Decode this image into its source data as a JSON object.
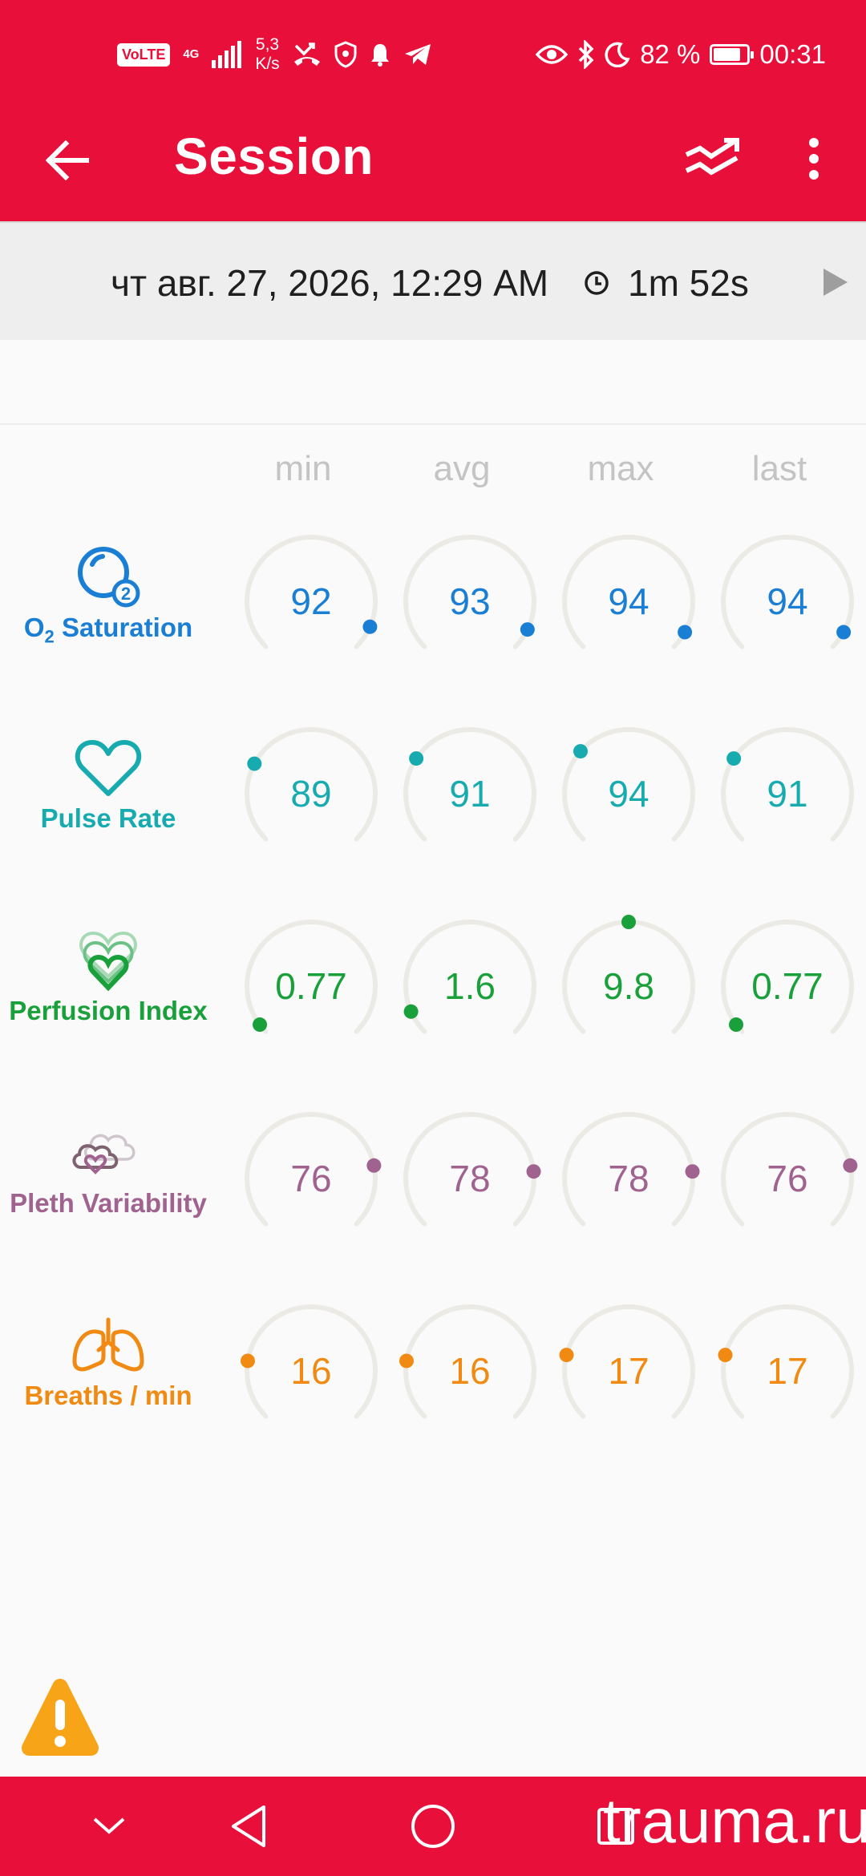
{
  "status_bar": {
    "volte": "VoLTE",
    "network": "4G",
    "speed_value": "5,3",
    "speed_unit": "K/s",
    "battery_percent": "82 %",
    "battery_level": 0.82,
    "time": "00:31"
  },
  "app_bar": {
    "title": "Session",
    "icons": [
      "back-arrow-icon",
      "trend-chart-icon",
      "more-vert-icon"
    ]
  },
  "session": {
    "date": "чт авг. 27, 2026, 12:29 AM",
    "duration": "1m 52s"
  },
  "columns": [
    "min",
    "avg",
    "max",
    "last"
  ],
  "metrics": [
    {
      "key": "o2",
      "name_prefix": "O",
      "name_sub": "2",
      "name_suffix": " Saturation",
      "icon": "o2-bubble-icon",
      "color": "#1A7FD4",
      "values": [
        {
          "text": "92",
          "level": 0.92
        },
        {
          "text": "93",
          "level": 0.93
        },
        {
          "text": "94",
          "level": 0.94
        },
        {
          "text": "94",
          "level": 0.94
        }
      ]
    },
    {
      "key": "pulse",
      "name": "Pulse Rate",
      "icon": "heart-outline-icon",
      "color": "#17ABB0",
      "values": [
        {
          "text": "89",
          "level": 0.27
        },
        {
          "text": "91",
          "level": 0.29
        },
        {
          "text": "94",
          "level": 0.32
        },
        {
          "text": "91",
          "level": 0.29
        }
      ]
    },
    {
      "key": "pi",
      "name": "Perfusion Index",
      "icon": "perfusion-hearts-icon",
      "color": "#19A03B",
      "values": [
        {
          "text": "0.77",
          "level": 0.03
        },
        {
          "text": "1.6",
          "level": 0.08
        },
        {
          "text": "9.8",
          "level": 0.5
        },
        {
          "text": "0.77",
          "level": 0.03
        }
      ]
    },
    {
      "key": "pvi",
      "name": "Pleth Variability",
      "icon": "pleth-clouds-icon",
      "color": "#A0628F",
      "values": [
        {
          "text": "76",
          "level": 0.79
        },
        {
          "text": "78",
          "level": 0.81
        },
        {
          "text": "78",
          "level": 0.81
        },
        {
          "text": "76",
          "level": 0.79
        }
      ]
    },
    {
      "key": "rr",
      "name": "Breaths / min",
      "icon": "lungs-icon",
      "color": "#F08A12",
      "values": [
        {
          "text": "16",
          "level": 0.2
        },
        {
          "text": "16",
          "level": 0.2
        },
        {
          "text": "17",
          "level": 0.22
        },
        {
          "text": "17",
          "level": 0.22
        }
      ]
    }
  ],
  "nav_bar": {
    "icons": [
      "collapse-chevron-icon",
      "back-triangle-icon",
      "home-circle-icon",
      "recents-square-icon"
    ]
  },
  "watermark": "trauma.ru",
  "colors": {
    "primary": "#E8103A",
    "gauge_track": "#EBEAE4",
    "warning": "#F7A418"
  }
}
